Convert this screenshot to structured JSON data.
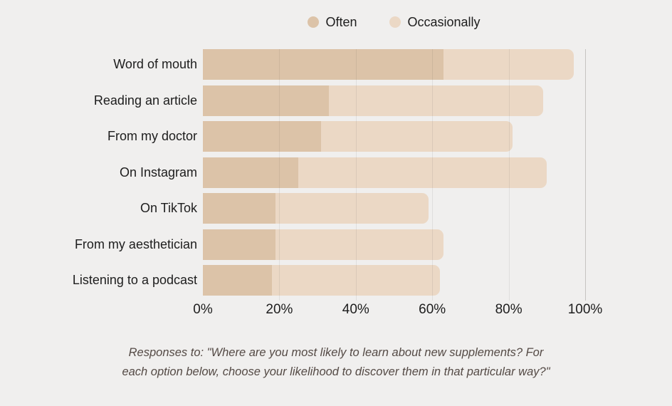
{
  "page": {
    "background": "#f0efee"
  },
  "chart_data": {
    "type": "bar",
    "orientation": "horizontal",
    "stacked": true,
    "categories": [
      "Word of mouth",
      "Reading an article",
      "From my doctor",
      "On Instagram",
      "On TikTok",
      "From my aesthetician",
      "Listening to a podcast"
    ],
    "series": [
      {
        "name": "Often",
        "color": "#dcc3a8",
        "values": [
          63,
          33,
          31,
          25,
          19,
          19,
          18
        ]
      },
      {
        "name": "Occasionally",
        "color": "#ebd8c5",
        "values": [
          34,
          56,
          50,
          65,
          40,
          44,
          44
        ]
      }
    ],
    "totals": [
      97,
      89,
      81,
      90,
      59,
      63,
      62
    ],
    "xlim": [
      0,
      100
    ],
    "x_tick_values": [
      0,
      20,
      40,
      60,
      80,
      100
    ],
    "x_ticks": [
      "0%",
      "20%",
      "40%",
      "60%",
      "80%",
      "100%"
    ],
    "grid": "vertical",
    "legend_position": "top-center",
    "title": "",
    "xlabel": "",
    "ylabel": ""
  },
  "caption": {
    "text": "Responses to: \"Where are you most likely to learn about new supplements? For\neach option below, choose your likelihood to discover them in that particular way?\""
  }
}
